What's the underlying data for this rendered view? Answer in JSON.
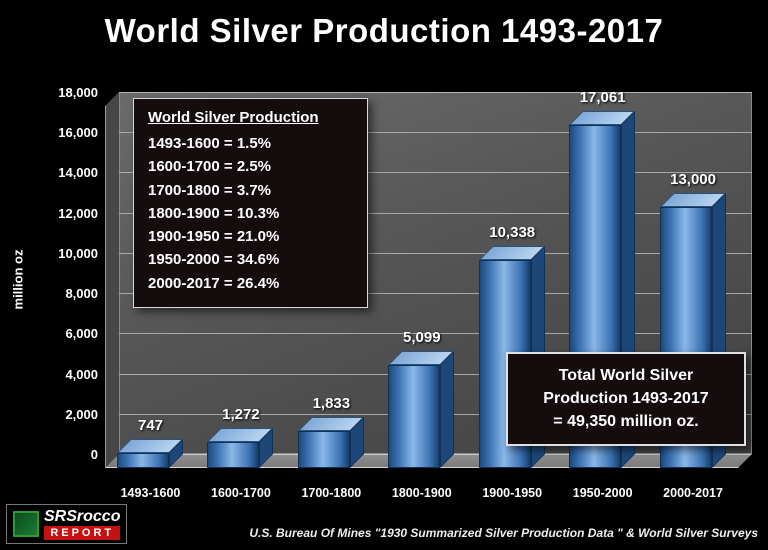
{
  "chart_data": {
    "type": "bar",
    "title": "World Silver Production 1493-2017",
    "categories": [
      "1493-1600",
      "1600-1700",
      "1700-1800",
      "1800-1900",
      "1900-1950",
      "1950-2000",
      "2000-2017"
    ],
    "values": [
      747,
      1272,
      1833,
      5099,
      10338,
      17061,
      13000
    ],
    "value_labels": [
      "747",
      "1,272",
      "1,833",
      "5,099",
      "10,338",
      "17,061",
      "13,000"
    ],
    "xlabel": "",
    "ylabel": "million oz",
    "ylim": [
      0,
      18000
    ],
    "ytick_step": 2000,
    "ytick_labels": [
      "0",
      "2,000",
      "4,000",
      "6,000",
      "8,000",
      "10,000",
      "12,000",
      "14,000",
      "16,000",
      "18,000"
    ],
    "grid": true,
    "legend_position": "none",
    "bar_color": "#4f81bd",
    "background_color": "#000000",
    "wall_color": "#555555"
  },
  "annotations": {
    "share_box": {
      "title": "World Silver Production",
      "lines": [
        "1493-1600 = 1.5%",
        "1600-1700 = 2.5%",
        "1700-1800 = 3.7%",
        "1800-1900 = 10.3%",
        "1900-1950 = 21.0%",
        "1950-2000 = 34.6%",
        "2000-2017 = 26.4%"
      ]
    },
    "total_box": {
      "lines": [
        "Total World Silver",
        "Production 1493-2017",
        "= 49,350 million oz."
      ]
    }
  },
  "footer": {
    "logo_line1": "SRSrocco",
    "logo_line2": "REPORT",
    "source": "U.S. Bureau Of Mines \"1930 Summarized Silver Production Data \"  & World Silver Surveys"
  }
}
